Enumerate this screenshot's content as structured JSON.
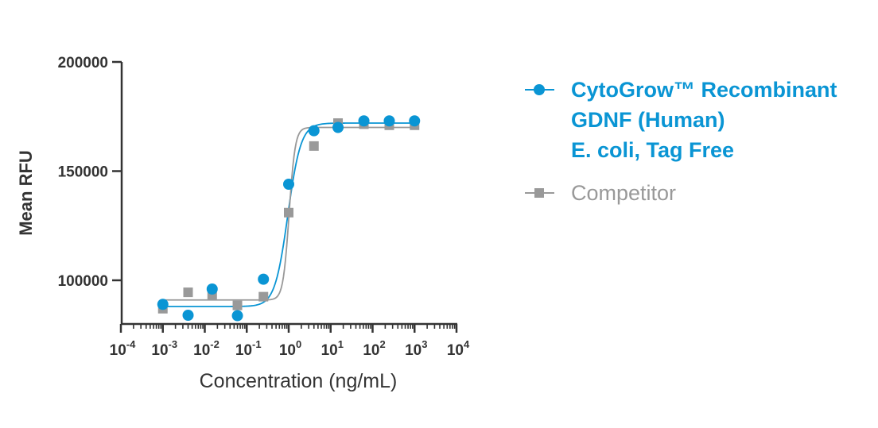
{
  "chart_data": {
    "type": "scatter",
    "title": "",
    "xlabel": "Concentration (ng/mL)",
    "ylabel": "Mean RFU",
    "xscale": "log",
    "xlim_exp": [
      -4,
      4
    ],
    "ylim": [
      80000,
      200000
    ],
    "x_ticks": [
      {
        "base": "10",
        "exp": "-4"
      },
      {
        "base": "10",
        "exp": "-3"
      },
      {
        "base": "10",
        "exp": "-2"
      },
      {
        "base": "10",
        "exp": "-1"
      },
      {
        "base": "10",
        "exp": "0"
      },
      {
        "base": "10",
        "exp": "1"
      },
      {
        "base": "10",
        "exp": "2"
      },
      {
        "base": "10",
        "exp": "3"
      },
      {
        "base": "10",
        "exp": "4"
      }
    ],
    "y_ticks": [
      {
        "value": 100000,
        "label": "100000"
      },
      {
        "value": 150000,
        "label": "150000"
      },
      {
        "value": 200000,
        "label": "200000"
      }
    ],
    "legend_position": "right",
    "series": [
      {
        "name": "CytoGrow™ Recombinant GDNF (Human) E. coli, Tag Free",
        "legend_lines": [
          "CytoGrow™ Recombinant",
          "GDNF (Human)",
          "E. coli, Tag Free"
        ],
        "color": "#0a95d4",
        "marker": "circle",
        "x": [
          0.001,
          0.004,
          0.015,
          0.06,
          0.25,
          1,
          4,
          15,
          62,
          250,
          1000
        ],
        "y": [
          89000,
          84000,
          96000,
          83800,
          100500,
          144000,
          168500,
          170000,
          173000,
          173000,
          173000
        ],
        "fit": {
          "bottom": 88000,
          "top": 172000,
          "log_ec50": -0.02,
          "hill": 2.8
        }
      },
      {
        "name": "Competitor",
        "legend_lines": [
          "Competitor"
        ],
        "color": "#999999",
        "marker": "square",
        "x": [
          0.001,
          0.004,
          0.015,
          0.06,
          0.25,
          1,
          4,
          15,
          62,
          250,
          1000
        ],
        "y": [
          87000,
          94500,
          93000,
          88500,
          92500,
          131000,
          161500,
          172000,
          171500,
          171000,
          171000
        ],
        "fit": {
          "bottom": 91000,
          "top": 170000,
          "log_ec50": 0.01,
          "hill": 6.0
        }
      }
    ]
  }
}
